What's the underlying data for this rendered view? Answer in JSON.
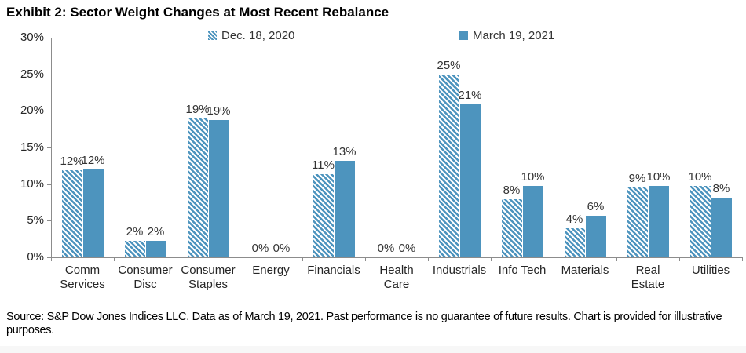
{
  "title": "Exhibit 2: Sector Weight Changes at Most Recent Rebalance",
  "source_note": "Source: S&P Dow Jones Indices LLC. Data as of March 19, 2021. Past performance is no guarantee of future results. Chart is provided for illustrative purposes.",
  "colors": {
    "bar_blue": "#4d94be",
    "axis_gray": "#8c8c8c",
    "text_dark": "#262626",
    "title_black": "#000000"
  },
  "chart_data": {
    "type": "bar",
    "title": "Exhibit 2: Sector Weight Changes at Most Recent Rebalance",
    "categories": [
      "Comm Services",
      "Consumer Disc",
      "Consumer Staples",
      "Energy",
      "Financials",
      "Health Care",
      "Industrials",
      "Info Tech",
      "Materials",
      "Real Estate",
      "Utilities"
    ],
    "category_display": [
      "Comm\nServices",
      "Consumer\nDisc",
      "Consumer\nStaples",
      "Energy",
      "Financials",
      "Health\nCare",
      "Industrials",
      "Info Tech",
      "Materials",
      "Real\nEstate",
      "Utilities"
    ],
    "series": [
      {
        "name": "Dec. 18, 2020",
        "style": "hatched",
        "values": [
          12,
          2,
          19,
          0,
          11,
          0,
          25,
          8,
          4,
          9,
          10
        ],
        "labels": [
          "12%",
          "2%",
          "19%",
          "0%",
          "11%",
          "0%",
          "25%",
          "8%",
          "4%",
          "9%",
          "10%"
        ],
        "bar_heights_pct": [
          11.9,
          2.2,
          19.0,
          0,
          11.4,
          0,
          25.0,
          7.9,
          4.0,
          9.5,
          9.8
        ]
      },
      {
        "name": "March 19, 2021",
        "style": "solid",
        "values": [
          12,
          2,
          19,
          0,
          13,
          0,
          21,
          10,
          6,
          10,
          8
        ],
        "labels": [
          "12%",
          "2%",
          "19%",
          "0%",
          "13%",
          "0%",
          "21%",
          "10%",
          "6%",
          "10%",
          "8%"
        ],
        "bar_heights_pct": [
          12.0,
          2.3,
          18.7,
          0,
          13.2,
          0,
          20.9,
          9.8,
          5.7,
          9.8,
          8.1
        ]
      }
    ],
    "xlabel": "",
    "ylabel": "",
    "ylim": [
      0,
      30
    ],
    "yticks": [
      "0%",
      "5%",
      "10%",
      "15%",
      "20%",
      "25%",
      "30%"
    ],
    "grid": false,
    "legend_position": "top"
  }
}
